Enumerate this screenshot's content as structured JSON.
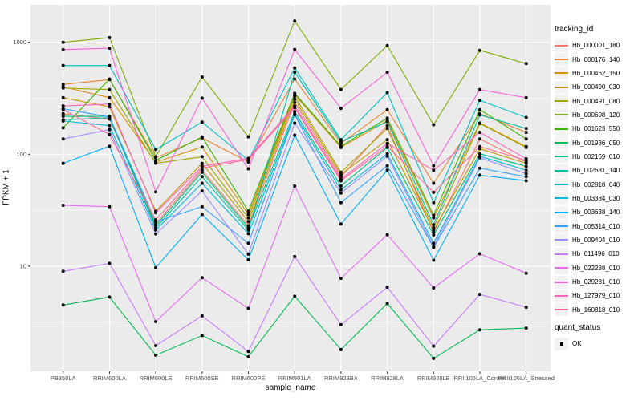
{
  "figure": {
    "panel_background": "#EBEBEB",
    "grid_color": "#FFFFFF",
    "tick_mark_color": "#333333",
    "tick_label_color": "#4D4D4D",
    "point_color": "#000000"
  },
  "chart_data": {
    "type": "line",
    "title": "",
    "xlabel": "sample_name",
    "ylabel": "FPKM + 1",
    "y_scale": "log10",
    "ylim": [
      1.15,
      2100
    ],
    "y_ticks": [
      10,
      100,
      1000
    ],
    "y_tick_labels": [
      "10",
      "100",
      "1000"
    ],
    "y_minor_ticks": [
      3.162,
      31.62,
      316.2
    ],
    "grid": true,
    "legend_position": "right",
    "categories": [
      "PB350LA",
      "RRIM600LA",
      "RRIM600LE",
      "RRIM600SE",
      "RRIM600PE",
      "RRIM901LA",
      "RRIM928BA",
      "RRIM928LA",
      "RRIM928LE",
      "RRII105LA_Control",
      "RRII105LA_Stressed"
    ],
    "series": [
      {
        "name": "Hb_000001_180",
        "color": "#F8766D",
        "values": [
          230,
          206,
          24,
          72,
          23,
          290,
          63,
          180,
          20,
          137,
          85
        ]
      },
      {
        "name": "Hb_000176_140",
        "color": "#EA8331",
        "values": [
          420,
          465,
          93,
          140,
          85,
          470,
          125,
          250,
          55,
          230,
          157
        ]
      },
      {
        "name": "Hb_000462_150",
        "color": "#D89000",
        "values": [
          400,
          320,
          85,
          116,
          29,
          340,
          115,
          200,
          27,
          190,
          117
        ]
      },
      {
        "name": "Hb_000490_030",
        "color": "#C09B00",
        "values": [
          320,
          265,
          31,
          83,
          25,
          310,
          66,
          135,
          21,
          112,
          83
        ]
      },
      {
        "name": "Hb_000491_080",
        "color": "#A3A500",
        "values": [
          390,
          378,
          83,
          95,
          27,
          330,
          69,
          170,
          22,
          188,
          115
        ]
      },
      {
        "name": "Hb_000608_120",
        "color": "#7CAE00",
        "values": [
          1000,
          1100,
          95,
          490,
          143,
          1550,
          378,
          935,
          183,
          848,
          645
        ]
      },
      {
        "name": "Hb_001623_550",
        "color": "#39B600",
        "values": [
          172,
          470,
          88,
          143,
          31,
          350,
          118,
          210,
          28.5,
          250,
          137
        ]
      },
      {
        "name": "Hb_001936_050",
        "color": "#00BB4E",
        "values": [
          4.5,
          5.3,
          1.6,
          2.4,
          1.55,
          5.4,
          1.8,
          4.65,
          1.5,
          2.7,
          2.8
        ]
      },
      {
        "name": "Hb_002169_010",
        "color": "#00BF7D",
        "values": [
          218,
          218,
          23,
          69,
          22,
          240,
          52,
          115,
          19,
          101,
          78
        ]
      },
      {
        "name": "Hb_002681_140",
        "color": "#00C1A3",
        "values": [
          203,
          212,
          22,
          63,
          21,
          540,
          130,
          195,
          23.5,
          224,
          170
        ]
      },
      {
        "name": "Hb_002818_040",
        "color": "#00BFC4",
        "values": [
          620,
          620,
          110,
          194,
          88,
          590,
          135,
          355,
          37,
          303,
          213
        ]
      },
      {
        "name": "Hb_003384_030",
        "color": "#00BAE0",
        "values": [
          198,
          180,
          21,
          55,
          19.5,
          228,
          48,
          101,
          16,
          96,
          72
        ]
      },
      {
        "name": "Hb_003638_140",
        "color": "#00B0F6",
        "values": [
          83,
          118,
          9.7,
          29,
          11.4,
          148,
          23.8,
          72,
          11.3,
          65,
          58
        ]
      },
      {
        "name": "Hb_005314_010",
        "color": "#35A2FF",
        "values": [
          255,
          215,
          25,
          34,
          16,
          225,
          37,
          79,
          14.7,
          75,
          63
        ]
      },
      {
        "name": "Hb_009404_010",
        "color": "#9590FF",
        "values": [
          137,
          166,
          19.4,
          47,
          12.8,
          190,
          45,
          96,
          15,
          93,
          67
        ]
      },
      {
        "name": "Hb_011496_010",
        "color": "#C77CFF",
        "values": [
          9,
          10.6,
          1.95,
          3.6,
          1.73,
          12.2,
          3,
          6.5,
          1.93,
          5.6,
          4.3
        ]
      },
      {
        "name": "Hb_022288_010",
        "color": "#E76BF3",
        "values": [
          35,
          34,
          3.2,
          7.9,
          4.2,
          52,
          7.8,
          19.1,
          6.4,
          12.9,
          8.65
        ]
      },
      {
        "name": "Hb_029281_010",
        "color": "#FA62DB",
        "values": [
          860,
          885,
          46,
          317,
          74,
          863,
          257,
          540,
          79,
          378,
          320
        ]
      },
      {
        "name": "Hb_127979_010",
        "color": "#FF62BC",
        "values": [
          270,
          280,
          30,
          78,
          92,
          270,
          60,
          125,
          72,
          157,
          91
        ]
      },
      {
        "name": "Hb_160818_010",
        "color": "#FF6A98",
        "values": [
          250,
          150,
          26,
          75,
          90,
          260,
          58,
          118,
          45.6,
          117,
          88
        ]
      }
    ],
    "legend": {
      "color_title": "tracking_id",
      "shape_title": "quant_status",
      "shape_entries": [
        {
          "label": "OK"
        }
      ]
    }
  }
}
